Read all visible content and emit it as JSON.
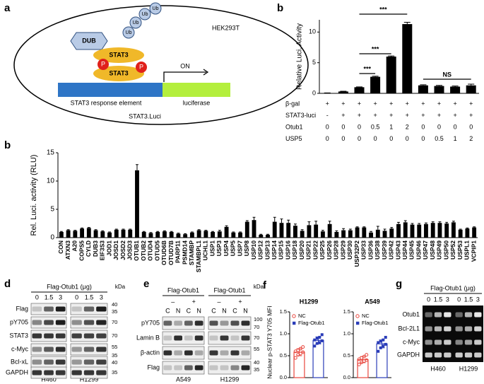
{
  "diagram": {
    "panel": "a",
    "dub": "DUB",
    "ub": [
      "Ub",
      "Ub",
      "Ub",
      "Ub"
    ],
    "stat3": [
      "STAT3",
      "STAT3"
    ],
    "phospho": [
      "P",
      "P"
    ],
    "cell": "HEK293T",
    "on": "ON",
    "element": "STAT3 response element",
    "reporter": "luciferase",
    "construct": "STAT3.Luci"
  },
  "chart_data": [
    {
      "type": "bar",
      "panel": "b",
      "ylabel": "Relative Luci. Activity",
      "color": "#000000",
      "values": [
        0.05,
        0.3,
        1.0,
        2.7,
        6.0,
        11.3,
        1.3,
        1.2,
        1.1,
        1.3
      ],
      "errors": [
        0.02,
        0.05,
        0.05,
        0.1,
        0.1,
        0.3,
        0.1,
        0.1,
        0.1,
        0.2
      ],
      "ylim": [
        0,
        12
      ],
      "yticks": [
        0,
        5,
        10
      ],
      "annotations": [
        "***",
        "***",
        "***",
        "NS"
      ],
      "rows": [
        {
          "name": "β-gal",
          "labels": [
            "+",
            "+",
            "+",
            "+",
            "+",
            "+",
            "+",
            "+",
            "+",
            "+"
          ]
        },
        {
          "name": "STAT3-luci",
          "labels": [
            "-",
            "+",
            "+",
            "+",
            "+",
            "+",
            "+",
            "+",
            "+",
            "+"
          ]
        },
        {
          "name": "Otub1",
          "labels": [
            0,
            0,
            0,
            0.5,
            1,
            2,
            0,
            0,
            0,
            0
          ]
        },
        {
          "name": "USP5",
          "labels": [
            0,
            0,
            0,
            0,
            0,
            0,
            0,
            0.5,
            1,
            2
          ]
        }
      ]
    },
    {
      "type": "bar",
      "panel": "b",
      "ylabel": "Rel. Luci. activity (RLU)",
      "color": "#000000",
      "categories": [
        "CON",
        "ATXN3",
        "A20",
        "COPS5",
        "CYLD",
        "DUB3",
        "EIF3S3",
        "JOD1",
        "JOSD1",
        "JOSD2",
        "JOSD3",
        "OTUB1",
        "OTUB2",
        "OTUD4",
        "OTUD5",
        "OTUD6B",
        "OTUD7B",
        "PARP11",
        "PSMD14",
        "STAMBP",
        "STAMBPL1",
        "UCHL1",
        "USP1",
        "USP3",
        "USP4",
        "USP5",
        "USP7",
        "USP8",
        "USP10",
        "USP12",
        "USP13",
        "USP14",
        "USP15",
        "USP16",
        "USP18",
        "USP20",
        "USP21",
        "USP22",
        "USP25",
        "USP26",
        "USP28",
        "USP29",
        "USP30",
        "USP32P2",
        "USP33",
        "USP36",
        "USP38",
        "USP39",
        "USP42",
        "USP43",
        "USP44",
        "USP45",
        "USP46",
        "USP47",
        "USP48",
        "USP49",
        "USP50",
        "USP52",
        "USP53",
        "USPL1",
        "VCPIP1"
      ],
      "values": [
        1.0,
        1.3,
        1.2,
        1.6,
        1.7,
        1.3,
        1.1,
        0.9,
        1.4,
        1.4,
        1.4,
        11.9,
        1.0,
        0.8,
        1.0,
        1.1,
        1.0,
        0.7,
        0.6,
        0.9,
        1.3,
        1.2,
        1.0,
        1.1,
        1.9,
        0.9,
        0.9,
        2.8,
        3.1,
        0.5,
        0.5,
        2.8,
        2.6,
        2.6,
        2.1,
        1.2,
        2.2,
        2.3,
        1.1,
        2.4,
        1.0,
        1.3,
        1.3,
        1.8,
        1.8,
        0.9,
        1.4,
        1.2,
        1.6,
        2.4,
        2.7,
        2.3,
        2.3,
        2.4,
        2.6,
        2.6,
        2.5,
        2.7,
        1.4,
        1.6,
        1.8
      ],
      "errors": [
        0.1,
        0.1,
        0.1,
        0.1,
        0.1,
        0.1,
        0.1,
        0.1,
        0.1,
        0.1,
        0.1,
        1.0,
        0.1,
        0.1,
        0.1,
        0.1,
        0.1,
        0.1,
        0.1,
        0.1,
        0.1,
        0.1,
        0.1,
        0.2,
        0.2,
        0.1,
        0.1,
        0.2,
        0.5,
        0.1,
        0.1,
        0.8,
        0.7,
        0.5,
        0.3,
        0.2,
        0.6,
        0.6,
        0.2,
        0.5,
        0.2,
        0.3,
        0.2,
        0.1,
        0.1,
        0.2,
        0.6,
        0.3,
        0.2,
        0.3,
        0.3,
        0.2,
        0.2,
        0.2,
        0.2,
        0.2,
        0.2,
        0.2,
        0.1,
        0.1,
        0.1
      ],
      "ylim": [
        0,
        15
      ],
      "yticks": [
        0,
        5,
        10,
        15
      ]
    },
    {
      "type": "dot",
      "panel": "f",
      "title": "H1299",
      "ylabel": "Nuclear p-STAT3 Y705 MFI",
      "ylim": [
        0,
        1.5
      ],
      "yticks": [
        {
          "value": 0,
          "label": "0.0"
        },
        {
          "value": 0.5,
          "label": "0.5"
        },
        {
          "value": 1,
          "label": "1.0"
        },
        {
          "value": 1.5,
          "label": "1.5"
        }
      ],
      "series": [
        {
          "name": "NC",
          "color": "#e8453c",
          "values": [
            0.58
          ],
          "errors": [
            0.08
          ],
          "points": [
            0.45,
            0.52,
            0.55,
            0.58,
            0.6,
            0.62,
            0.66,
            0.7
          ]
        },
        {
          "name": "Flag-Otub1",
          "color": "#2a3cb8",
          "values": [
            0.85
          ],
          "errors": [
            0.08
          ],
          "points": [
            0.72,
            0.78,
            0.8,
            0.84,
            0.86,
            0.9,
            0.92,
            0.98
          ]
        }
      ]
    },
    {
      "type": "dot",
      "title": "A549",
      "ylim": [
        0,
        1.5
      ],
      "yticks": [
        {
          "value": 0,
          "label": "0.0"
        },
        {
          "value": 0.5,
          "label": "0.5"
        },
        {
          "value": 1,
          "label": "1.0"
        },
        {
          "value": 1.5,
          "label": "1.5"
        }
      ],
      "series": [
        {
          "name": "NC",
          "color": "#e8453c",
          "values": [
            0.41
          ],
          "errors": [
            0.07
          ],
          "points": [
            0.3,
            0.35,
            0.38,
            0.4,
            0.42,
            0.45,
            0.48,
            0.52
          ]
        },
        {
          "name": "Flag-Otub1",
          "color": "#2a3cb8",
          "values": [
            0.77
          ],
          "errors": [
            0.09
          ],
          "points": [
            0.6,
            0.68,
            0.72,
            0.76,
            0.8,
            0.83,
            0.86,
            0.92
          ]
        }
      ]
    }
  ],
  "blot_d": {
    "panel": "d",
    "title": "Flag-Otub1 (μg)",
    "unit": "kDa",
    "groups": [
      {
        "cell": "H460",
        "doses": [
          0,
          1.5,
          3
        ]
      },
      {
        "cell": "H1299",
        "doses": [
          0,
          1.5,
          3
        ]
      }
    ],
    "rows": [
      "Flag",
      "pY705",
      "STAT3",
      "c-Myc",
      "Bcl-xL",
      "GAPDH"
    ],
    "markers": [
      40,
      35,
      70,
      70,
      55,
      35,
      40,
      35
    ]
  },
  "blot_e": {
    "panel": "e",
    "unit": "kDa",
    "groups": [
      {
        "treatment": "Flag-Otub1",
        "signs": [
          "–",
          "+"
        ],
        "fractions": [
          "C",
          "N",
          "C",
          "N"
        ],
        "cell": "A549"
      },
      {
        "treatment": "Flag-Otub1",
        "signs": [
          "–",
          "+"
        ],
        "fractions": [
          "C",
          "N",
          "C",
          "N"
        ],
        "cell": "H1299"
      }
    ],
    "rows": [
      "pY705",
      "Lamin B",
      "β-actin",
      "Flag"
    ],
    "markers": [
      100,
      70,
      70,
      55,
      40,
      35
    ]
  },
  "gel_g": {
    "panel": "g",
    "title": "Flag-Otub1 (μg)",
    "groups": [
      {
        "cell": "H460",
        "doses": [
          0,
          1.5,
          3
        ]
      },
      {
        "cell": "H1299",
        "doses": [
          0,
          1.5,
          3
        ]
      }
    ],
    "rows": [
      "Otub1",
      "Bcl-2L1",
      "c-Myc",
      "GAPDH"
    ]
  }
}
